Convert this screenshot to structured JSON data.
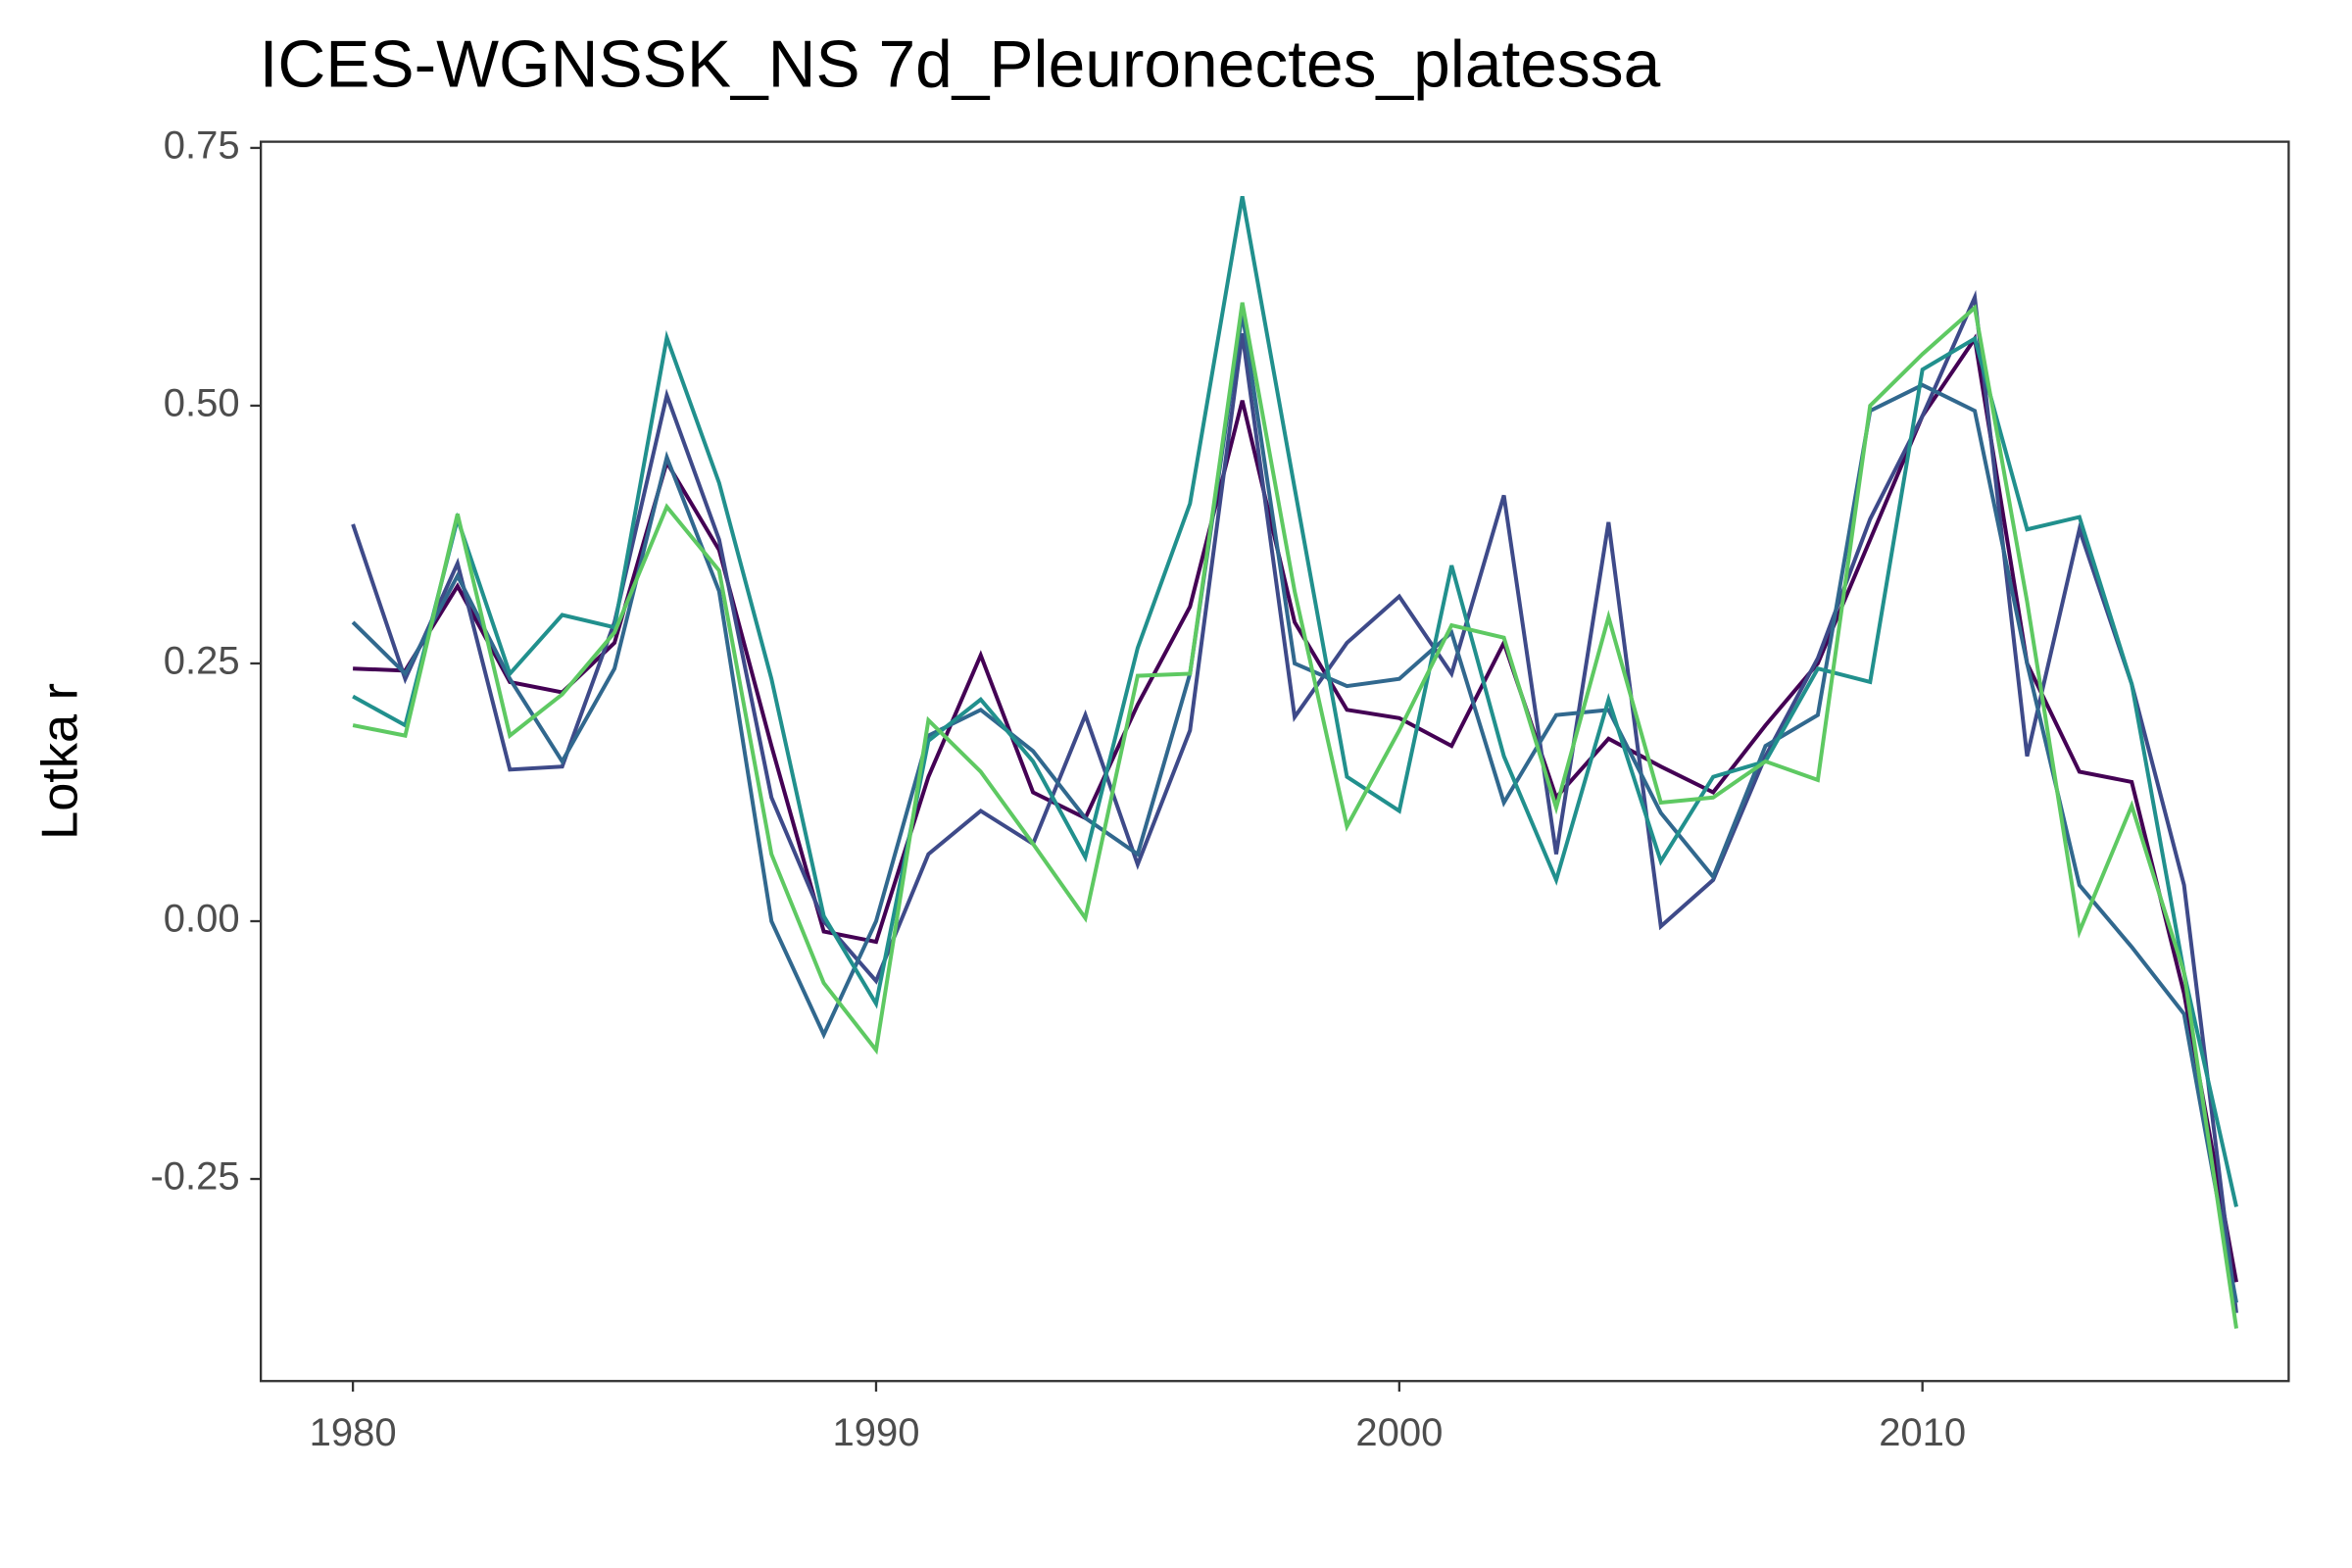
{
  "chart_data": {
    "type": "line",
    "title": "ICES-WGNSSK_NS 7d_Pleuronectes_platessa",
    "y_label": "Lotka r",
    "x": [
      1980,
      1981,
      1982,
      1983,
      1984,
      1985,
      1986,
      1987,
      1988,
      1989,
      1990,
      1991,
      1992,
      1993,
      1994,
      1995,
      1996,
      1997,
      1998,
      1999,
      2000,
      2001,
      2002,
      2003,
      2004,
      2005,
      2006,
      2007,
      2008,
      2009,
      2010,
      2011,
      2012,
      2013,
      2014,
      2015,
      2016
    ],
    "series": [
      {
        "color": "#440154",
        "values": [
          0.245,
          0.243,
          0.325,
          0.232,
          0.222,
          0.27,
          0.445,
          0.36,
          0.17,
          -0.01,
          -0.02,
          0.14,
          0.258,
          0.125,
          0.1,
          0.21,
          0.305,
          0.505,
          0.29,
          0.205,
          0.197,
          0.17,
          0.27,
          0.12,
          0.177,
          0.15,
          0.125,
          0.19,
          0.25,
          0.37,
          0.49,
          0.565,
          0.25,
          0.145,
          0.135,
          -0.07,
          -0.35
        ]
      },
      {
        "color": "#3e4a89",
        "values": [
          0.385,
          0.235,
          0.347,
          0.147,
          0.15,
          0.29,
          0.51,
          0.37,
          0.12,
          0.0,
          -0.058,
          0.065,
          0.107,
          0.075,
          0.2,
          0.055,
          0.185,
          0.57,
          0.198,
          0.27,
          0.315,
          0.24,
          0.413,
          0.065,
          0.387,
          -0.005,
          0.04,
          0.16,
          0.255,
          0.39,
          0.49,
          0.605,
          0.16,
          0.38,
          0.23,
          0.035,
          -0.38
        ]
      },
      {
        "color": "#31688e",
        "values": [
          0.29,
          0.24,
          0.335,
          0.235,
          0.155,
          0.245,
          0.45,
          0.32,
          0.0,
          -0.11,
          0.0,
          0.18,
          0.205,
          0.165,
          0.1,
          0.065,
          0.24,
          0.59,
          0.25,
          0.228,
          0.235,
          0.28,
          0.115,
          0.2,
          0.205,
          0.105,
          0.043,
          0.17,
          0.2,
          0.495,
          0.52,
          0.495,
          0.25,
          0.035,
          -0.025,
          -0.09,
          -0.37
        ]
      },
      {
        "color": "#21908d",
        "values": [
          0.218,
          0.19,
          0.39,
          0.24,
          0.297,
          0.285,
          0.566,
          0.425,
          0.235,
          0.005,
          -0.08,
          0.175,
          0.215,
          0.155,
          0.062,
          0.265,
          0.405,
          0.703,
          0.42,
          0.14,
          0.107,
          0.345,
          0.16,
          0.04,
          0.215,
          0.058,
          0.14,
          0.155,
          0.245,
          0.232,
          0.535,
          0.565,
          0.38,
          0.392,
          0.23,
          -0.05,
          -0.277
        ]
      },
      {
        "color": "#5ec962",
        "values": [
          0.19,
          0.18,
          0.395,
          0.18,
          0.22,
          0.28,
          0.402,
          0.34,
          0.065,
          -0.06,
          -0.125,
          0.195,
          0.145,
          0.075,
          0.003,
          0.238,
          0.24,
          0.6,
          0.32,
          0.092,
          0.185,
          0.287,
          0.275,
          0.11,
          0.295,
          0.115,
          0.12,
          0.155,
          0.137,
          0.5,
          0.55,
          0.595,
          0.31,
          -0.01,
          0.112,
          -0.05,
          -0.395
        ]
      }
    ],
    "xlim": [
      1978.24,
      2017.0
    ],
    "xticks": [
      1980,
      1990,
      2000,
      2010
    ],
    "ylim": [
      -0.446,
      0.756
    ],
    "yticks": [
      -0.25,
      {
        "value": 0,
        "label": "0.00"
      },
      0.25,
      {
        "value": 0.5,
        "label": "0.50"
      },
      0.75
    ],
    "grid": false
  }
}
